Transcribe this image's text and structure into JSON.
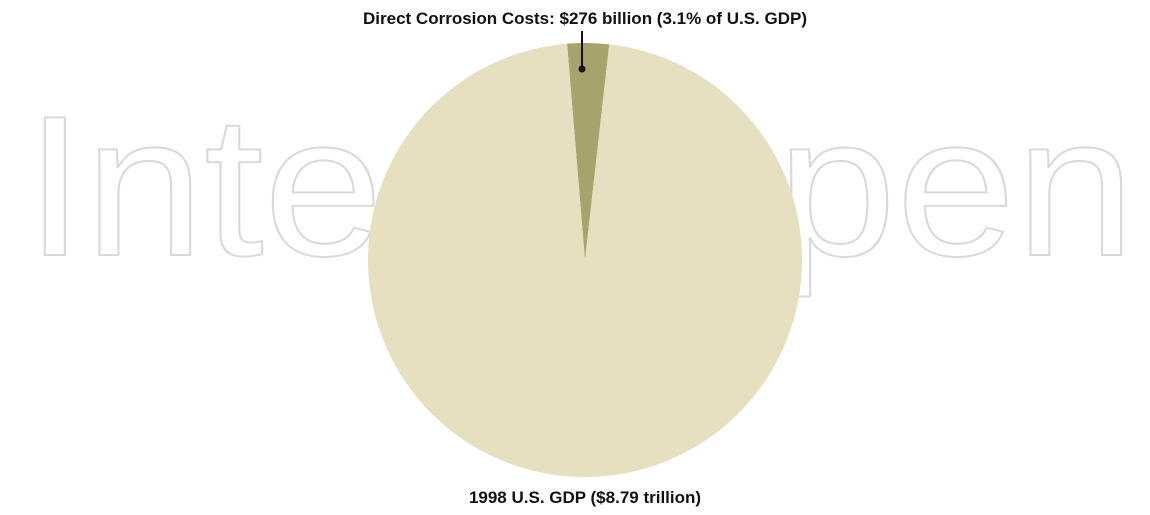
{
  "watermark": "IntechOpen",
  "chart_data": {
    "type": "pie",
    "slices": [
      {
        "label": "Direct Corrosion Costs: $276 billion (3.1% of U.S. GDP)",
        "value": 3.1,
        "color": "#a8a26d"
      },
      {
        "label": "1998 U.S. GDP ($8.79 trillion)",
        "value": 96.9,
        "color": "#e6e0c0"
      }
    ],
    "annotations": {
      "top": "Direct Corrosion Costs: $276 billion (3.1% of U.S. GDP)",
      "bottom": "1998 U.S. GDP ($8.79 trillion)"
    }
  }
}
